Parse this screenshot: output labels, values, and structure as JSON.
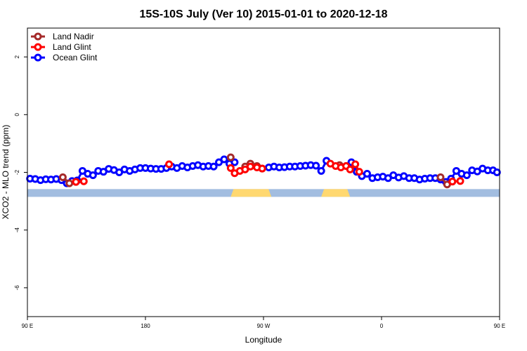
{
  "chart_data": {
    "type": "line",
    "title": "15S-10S July (Ver 10)   2015-01-01 to 2020-12-18",
    "xlabel": "Longitude",
    "ylabel": "XCO2 - MLO trend (ppm)",
    "xlim": [
      0,
      360
    ],
    "ylim": [
      -7,
      3
    ],
    "x_ticks": [
      {
        "value": 0,
        "label": "90 E"
      },
      {
        "value": 90,
        "label": "180"
      },
      {
        "value": 180,
        "label": "90 W"
      },
      {
        "value": 270,
        "label": "0"
      },
      {
        "value": 360,
        "label": "90 E"
      }
    ],
    "y_ticks": [
      {
        "value": -6,
        "label": "-6"
      },
      {
        "value": -4,
        "label": "-4"
      },
      {
        "value": -2,
        "label": "-2"
      },
      {
        "value": 0,
        "label": "0"
      },
      {
        "value": 2,
        "label": "2"
      }
    ],
    "legend_position": "top-left",
    "colors": {
      "Land Nadir": "#a52a2a",
      "Land Glint": "#ff0000",
      "Ocean Glint": "#0000ff",
      "ocean_band": "#a2bde0",
      "land_band": "#ffd870"
    },
    "surface_band": {
      "y_range": [
        -2.58,
        -2.85
      ],
      "land_segments_lon": [
        [
          155,
          186
        ],
        [
          224,
          246
        ]
      ]
    },
    "series": [
      {
        "name": "Land Nadir",
        "segments": [
          [
            [
              27,
              -2.17
            ],
            [
              32,
              -2.38
            ],
            [
              37,
              -2.33
            ]
          ],
          [
            [
              155,
              -1.48
            ]
          ],
          [
            [
              166,
              -1.8
            ],
            [
              170,
              -1.7
            ],
            [
              175,
              -1.78
            ],
            [
              179,
              -1.87
            ]
          ],
          [
            [
              238,
              -1.75
            ],
            [
              243,
              -1.78
            ]
          ],
          [
            [
              315,
              -2.17
            ],
            [
              320,
              -2.42
            ],
            [
              324,
              -2.32
            ]
          ]
        ]
      },
      {
        "name": "Land Glint",
        "segments": [
          [
            [
              37,
              -2.33
            ],
            [
              43,
              -2.31
            ]
          ],
          [
            [
              108,
              -1.72
            ]
          ],
          [
            [
              155,
              -1.85
            ],
            [
              158,
              -2.03
            ],
            [
              162,
              -1.95
            ],
            [
              166,
              -1.9
            ],
            [
              170,
              -1.8
            ],
            [
              175,
              -1.83
            ],
            [
              179,
              -1.87
            ]
          ],
          [
            [
              231,
              -1.7
            ],
            [
              235,
              -1.78
            ],
            [
              239,
              -1.83
            ],
            [
              243,
              -1.78
            ],
            [
              246,
              -1.9
            ],
            [
              250,
              -1.72
            ],
            [
              253,
              -1.98
            ]
          ],
          [
            [
              324,
              -2.32
            ],
            [
              330,
              -2.3
            ]
          ]
        ]
      },
      {
        "name": "Ocean Glint",
        "series_points": [
          [
            2,
            -2.22
          ],
          [
            6,
            -2.23
          ],
          [
            10,
            -2.27
          ],
          [
            14,
            -2.24
          ],
          [
            18,
            -2.25
          ],
          [
            22,
            -2.23
          ],
          [
            26,
            -2.27
          ],
          [
            30,
            -2.38
          ],
          [
            34,
            -2.3
          ],
          [
            38,
            -2.28
          ],
          [
            42,
            -1.95
          ],
          [
            46,
            -2.05
          ],
          [
            50,
            -2.1
          ],
          [
            54,
            -1.95
          ],
          [
            58,
            -1.98
          ],
          [
            62,
            -1.88
          ],
          [
            66,
            -1.92
          ],
          [
            70,
            -2.0
          ],
          [
            74,
            -1.9
          ],
          [
            78,
            -1.95
          ],
          [
            82,
            -1.9
          ],
          [
            86,
            -1.85
          ],
          [
            90,
            -1.85
          ],
          [
            94,
            -1.87
          ],
          [
            98,
            -1.88
          ],
          [
            102,
            -1.88
          ],
          [
            106,
            -1.85
          ],
          [
            110,
            -1.8
          ],
          [
            114,
            -1.85
          ],
          [
            118,
            -1.78
          ],
          [
            122,
            -1.83
          ],
          [
            126,
            -1.78
          ],
          [
            130,
            -1.75
          ],
          [
            134,
            -1.8
          ],
          [
            138,
            -1.78
          ],
          [
            142,
            -1.8
          ],
          [
            146,
            -1.65
          ],
          [
            150,
            -1.55
          ],
          [
            154,
            -1.7
          ],
          [
            158,
            -1.65
          ],
          [
            184,
            -1.83
          ],
          [
            188,
            -1.8
          ],
          [
            192,
            -1.83
          ],
          [
            196,
            -1.82
          ],
          [
            200,
            -1.8
          ],
          [
            204,
            -1.8
          ],
          [
            208,
            -1.78
          ],
          [
            212,
            -1.77
          ],
          [
            216,
            -1.75
          ],
          [
            220,
            -1.77
          ],
          [
            224,
            -1.95
          ],
          [
            228,
            -1.6
          ],
          [
            247,
            -1.65
          ],
          [
            251,
            -1.98
          ],
          [
            255,
            -2.13
          ],
          [
            259,
            -2.05
          ],
          [
            263,
            -2.2
          ],
          [
            267,
            -2.17
          ],
          [
            271,
            -2.15
          ],
          [
            275,
            -2.2
          ],
          [
            279,
            -2.1
          ],
          [
            283,
            -2.18
          ],
          [
            287,
            -2.13
          ],
          [
            291,
            -2.2
          ],
          [
            295,
            -2.2
          ],
          [
            299,
            -2.25
          ],
          [
            303,
            -2.22
          ],
          [
            307,
            -2.2
          ],
          [
            311,
            -2.2
          ],
          [
            315,
            -2.25
          ],
          [
            319,
            -2.33
          ],
          [
            323,
            -2.22
          ],
          [
            327,
            -1.95
          ],
          [
            331,
            -2.05
          ],
          [
            335,
            -2.1
          ],
          [
            339,
            -1.93
          ],
          [
            343,
            -1.97
          ],
          [
            347,
            -1.87
          ],
          [
            351,
            -1.93
          ],
          [
            355,
            -1.93
          ],
          [
            358,
            -2.0
          ]
        ],
        "gaps_after": [
          [
            158,
            184
          ],
          [
            228,
            247
          ]
        ]
      }
    ]
  }
}
